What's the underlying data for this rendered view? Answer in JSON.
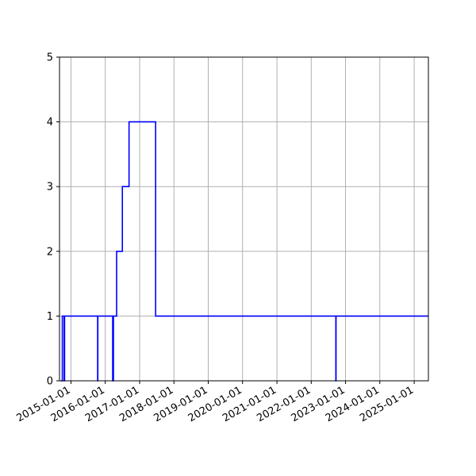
{
  "chart_data": {
    "type": "line",
    "title": "",
    "xlabel": "",
    "ylabel": "",
    "x_axis_type": "date",
    "xlim": [
      "2014-09-01",
      "2025-06-01"
    ],
    "ylim": [
      0,
      5
    ],
    "grid": true,
    "colors": {
      "series": "#0000ff",
      "grid": "#b0b0b0",
      "axes": "#000000"
    },
    "x_ticks": [
      "2015-01-01",
      "2016-01-01",
      "2017-01-01",
      "2018-01-01",
      "2019-01-01",
      "2020-01-01",
      "2021-01-01",
      "2022-01-01",
      "2023-01-01",
      "2024-01-01",
      "2025-01-01"
    ],
    "y_ticks": [
      "0",
      "1",
      "2",
      "3",
      "4",
      "5"
    ],
    "series": [
      {
        "step": "post",
        "points": [
          {
            "x": "2014-09-15",
            "y": 0
          },
          {
            "x": "2014-10-01",
            "y": 1
          },
          {
            "x": "2014-10-20",
            "y": 0
          },
          {
            "x": "2014-10-25",
            "y": 1
          },
          {
            "x": "2015-10-12",
            "y": 0
          },
          {
            "x": "2015-10-14",
            "y": 1
          },
          {
            "x": "2016-03-20",
            "y": 0
          },
          {
            "x": "2016-03-28",
            "y": 1
          },
          {
            "x": "2016-05-01",
            "y": 2
          },
          {
            "x": "2016-07-01",
            "y": 3
          },
          {
            "x": "2016-09-10",
            "y": 4
          },
          {
            "x": "2017-06-20",
            "y": 1
          },
          {
            "x": "2022-09-20",
            "y": 0
          },
          {
            "x": "2022-09-22",
            "y": 1
          },
          {
            "x": "2025-06-01",
            "y": 1
          }
        ]
      }
    ]
  }
}
